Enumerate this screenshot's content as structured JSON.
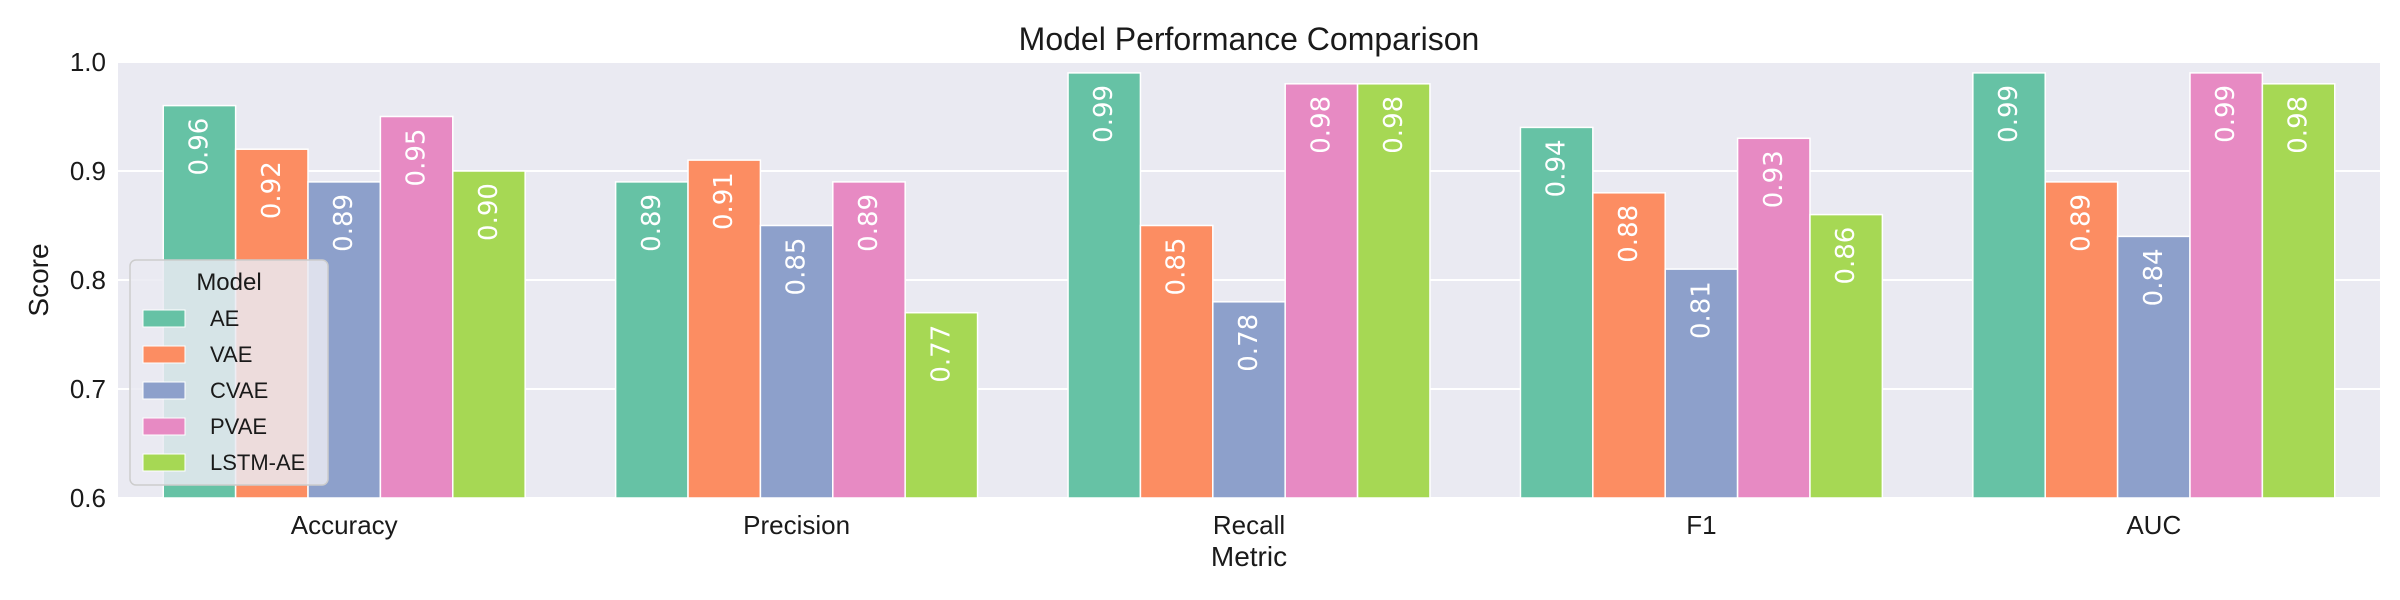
{
  "chart_data": {
    "type": "bar",
    "title": "Model Performance Comparison",
    "xlabel": "Metric",
    "ylabel": "Score",
    "ylim": [
      0.6,
      1.0
    ],
    "yticks": [
      "0.6",
      "0.7",
      "0.8",
      "0.9",
      "1.0"
    ],
    "categories": [
      "Accuracy",
      "Precision",
      "Recall",
      "F1",
      "AUC"
    ],
    "grid": true,
    "legend": {
      "title": "Model",
      "placement": "lower-left"
    },
    "series": [
      {
        "name": "AE",
        "color": "#66c2a5",
        "values": [
          0.96,
          0.89,
          0.99,
          0.94,
          0.99
        ],
        "labels": [
          "0.96",
          "0.89",
          "0.99",
          "0.94",
          "0.99"
        ]
      },
      {
        "name": "VAE",
        "color": "#fc8d62",
        "values": [
          0.92,
          0.91,
          0.85,
          0.88,
          0.89
        ],
        "labels": [
          "0.92",
          "0.91",
          "0.85",
          "0.88",
          "0.89"
        ]
      },
      {
        "name": "CVAE",
        "color": "#8da0cb",
        "values": [
          0.89,
          0.85,
          0.78,
          0.81,
          0.84
        ],
        "labels": [
          "0.89",
          "0.85",
          "0.78",
          "0.81",
          "0.84"
        ]
      },
      {
        "name": "PVAE",
        "color": "#e78ac3",
        "values": [
          0.95,
          0.89,
          0.98,
          0.93,
          0.99
        ],
        "labels": [
          "0.95",
          "0.89",
          "0.98",
          "0.93",
          "0.99"
        ]
      },
      {
        "name": "LSTM-AE",
        "color": "#a6d854",
        "values": [
          0.9,
          0.77,
          0.98,
          0.86,
          0.98
        ],
        "labels": [
          "0.90",
          "0.77",
          "0.98",
          "0.86",
          "0.98"
        ]
      }
    ]
  }
}
